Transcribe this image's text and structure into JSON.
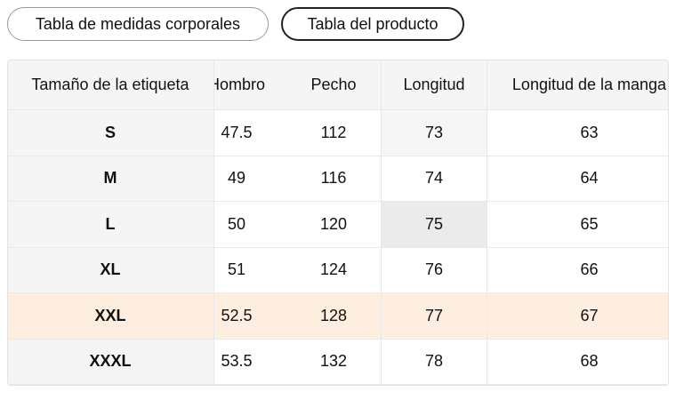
{
  "tabs": [
    "Tabla de medidas corporales",
    "Tabla del producto"
  ],
  "table": {
    "header": [
      "Tamaño de la etiqueta",
      "Hombro",
      "Pecho",
      "Longitud",
      "Longitud de la manga"
    ],
    "rows": [
      [
        "S",
        "47.5",
        "112",
        "73",
        "63"
      ],
      [
        "M",
        "49",
        "116",
        "74",
        "64"
      ],
      [
        "L",
        "50",
        "120",
        "75",
        "65"
      ],
      [
        "XL",
        "51",
        "124",
        "76",
        "66"
      ],
      [
        "XXL",
        "52.5",
        "128",
        "77",
        "67"
      ],
      [
        "XXXL",
        "53.5",
        "132",
        "78",
        "68"
      ]
    ]
  }
}
